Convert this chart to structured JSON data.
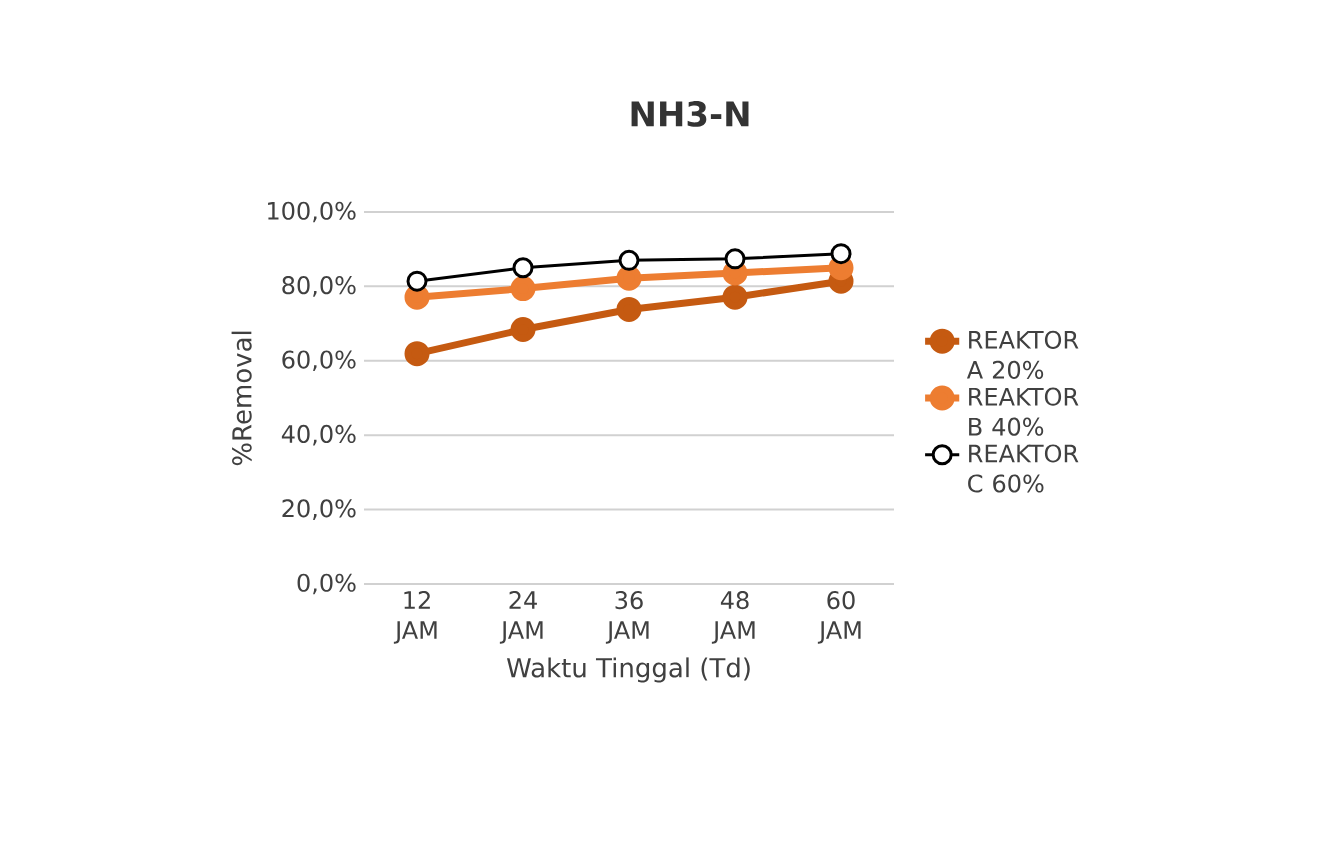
{
  "chart_data": {
    "type": "line",
    "title": "NH3-N",
    "xlabel": "Waktu Tinggal (Td)",
    "ylabel": "%Removal",
    "categories": [
      "12 JAM",
      "24 JAM",
      "36 JAM",
      "48 JAM",
      "60 JAM"
    ],
    "series": [
      {
        "name": "REAKTOR A 20%",
        "color": "#c55a11",
        "values": [
          61.9,
          68.4,
          73.8,
          77.1,
          81.4
        ]
      },
      {
        "name": "REAKTOR B 40%",
        "color": "#ed7d31",
        "values": [
          77.1,
          79.4,
          82.2,
          83.6,
          85.0
        ]
      },
      {
        "name": "REAKTOR C 60%",
        "color": "#000000",
        "values": [
          81.4,
          85.0,
          87.0,
          87.4,
          88.8
        ]
      }
    ],
    "ylim": [
      0,
      100
    ],
    "yticks": [
      {
        "value": 0,
        "label": "0,0%"
      },
      {
        "value": 20,
        "label": "20,0%"
      },
      {
        "value": 40,
        "label": "40,0%"
      },
      {
        "value": 60,
        "label": "60,0%"
      },
      {
        "value": 80,
        "label": "80,0%"
      },
      {
        "value": 100,
        "label": "100,0%"
      }
    ],
    "grid": "y",
    "legend": "right",
    "marker": "circle",
    "line_style": "solid"
  }
}
